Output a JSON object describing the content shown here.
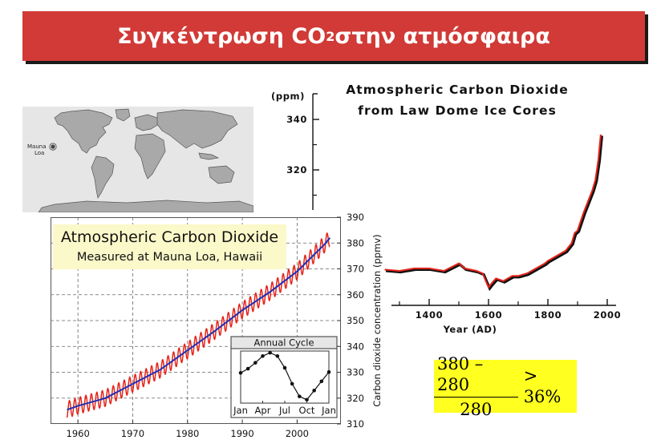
{
  "slide": {
    "title_main": "Συγκέντρωση CO",
    "title_sub": "2",
    "title_rest": " στην ατμόσφαιρα"
  },
  "map": {
    "label_line1": "Mauna",
    "label_line2": "Loa"
  },
  "colors": {
    "banner": "#d13a36",
    "observed_line": "#e5241b",
    "trend_line": "#1f2fb5",
    "formula_bg": "#ffff20",
    "title_box_bg": "#fbf8c9"
  },
  "formula": {
    "numerator": "380 – 280",
    "denominator": "280",
    "rhs": "> 36%"
  },
  "chart_data": [
    {
      "type": "line",
      "title": "Atmospheric Carbon Dioxide",
      "subtitle": "from Law Dome Ice Cores",
      "ylabel": "(ppm)",
      "xlabel": "Year (AD)",
      "xlim": [
        1250,
        2010
      ],
      "x_ticks": [
        1400,
        1600,
        1800,
        2000
      ],
      "y_ticks": [
        320,
        340
      ],
      "series": [
        {
          "x": [
            1250,
            1300,
            1350,
            1400,
            1450,
            1500,
            1520,
            1560,
            1580,
            1600,
            1610,
            1625,
            1650,
            1680,
            1700,
            1730,
            1760,
            1790,
            1800,
            1830,
            1860,
            1880,
            1890,
            1900,
            1920,
            1940,
            1950,
            1960,
            1970,
            1978
          ],
          "y": [
            280.5,
            280,
            281,
            281,
            280,
            283,
            281,
            280,
            279,
            273.5,
            275,
            277,
            276,
            278,
            278,
            279,
            281,
            283,
            284,
            286,
            288,
            291,
            295,
            296,
            303,
            309,
            312,
            316,
            324,
            334
          ]
        }
      ]
    },
    {
      "type": "line",
      "title": "Atmospheric Carbon Dioxide",
      "subtitle": "Measured at Mauna Loa, Hawaii",
      "ylabel": "Carbon dioxide concentration (ppmv)",
      "xlim": [
        1955,
        2008
      ],
      "ylim": [
        310,
        390
      ],
      "x_ticks": [
        1960,
        1970,
        1980,
        1990,
        2000
      ],
      "y_ticks": [
        310,
        320,
        330,
        340,
        350,
        360,
        370,
        380,
        390
      ],
      "grid": true,
      "trend": {
        "x": [
          1958,
          1960,
          1965,
          1970,
          1975,
          1980,
          1985,
          1990,
          1995,
          2000,
          2005,
          2006
        ],
        "y": [
          315.5,
          317,
          320,
          325.5,
          331,
          338.5,
          346,
          354,
          361,
          369,
          379.5,
          382
        ]
      },
      "seasonal_amplitude_ppmv": 3.2
    },
    {
      "type": "line",
      "title": "Annual Cycle",
      "categories": [
        "Jan",
        "Apr",
        "Jul",
        "Oct",
        "Jan"
      ],
      "series": [
        {
          "x": [
            1,
            2,
            3,
            4,
            5,
            6,
            7,
            8,
            9,
            10,
            11,
            12,
            13
          ],
          "y": [
            0.6,
            1.1,
            1.8,
            2.6,
            3.0,
            2.6,
            1.2,
            -0.7,
            -2.2,
            -2.6,
            -1.5,
            -0.4,
            0.7
          ]
        }
      ]
    }
  ]
}
